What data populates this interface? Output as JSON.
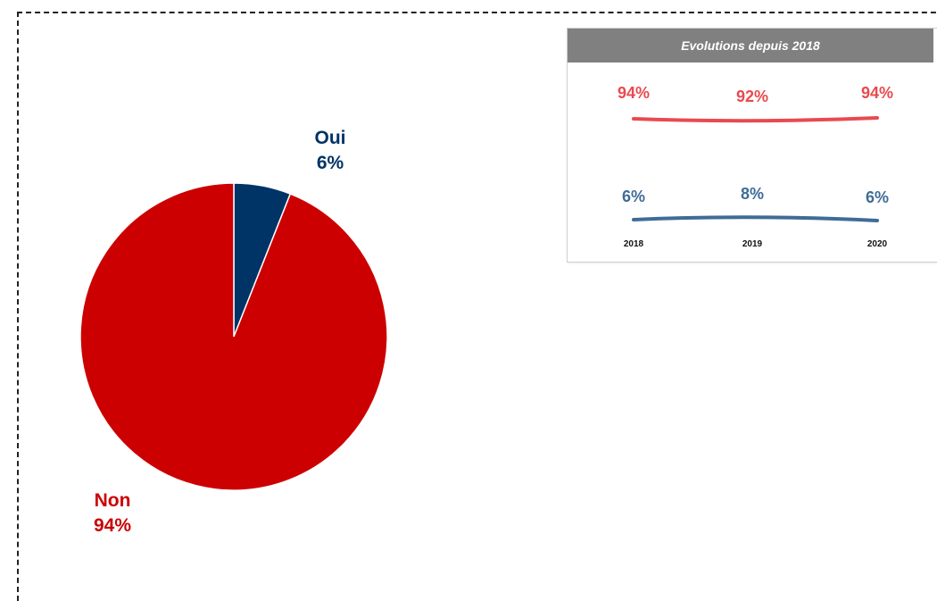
{
  "chart_data": [
    {
      "type": "pie",
      "slices": [
        {
          "label": "Oui",
          "value": 6,
          "value_label": "6%",
          "color": "#003366"
        },
        {
          "label": "Non",
          "value": 94,
          "value_label": "94%",
          "color": "#CC0000"
        }
      ]
    },
    {
      "type": "line",
      "title": "Evolutions depuis 2018",
      "categories": [
        "2018",
        "2019",
        "2020"
      ],
      "series": [
        {
          "values": [
            94,
            92,
            94
          ],
          "value_labels": [
            "94%",
            "92%",
            "94%"
          ],
          "color": "#E84A4F"
        },
        {
          "values": [
            6,
            8,
            6
          ],
          "value_labels": [
            "6%",
            "8%",
            "6%"
          ],
          "color": "#3F6C96"
        }
      ],
      "grid": false
    }
  ],
  "colors": {
    "oui": "#003366",
    "non": "#CC0000",
    "evo_red": "#E84A4F",
    "evo_blue": "#3F6C96",
    "evo_header_bg": "#808080"
  }
}
